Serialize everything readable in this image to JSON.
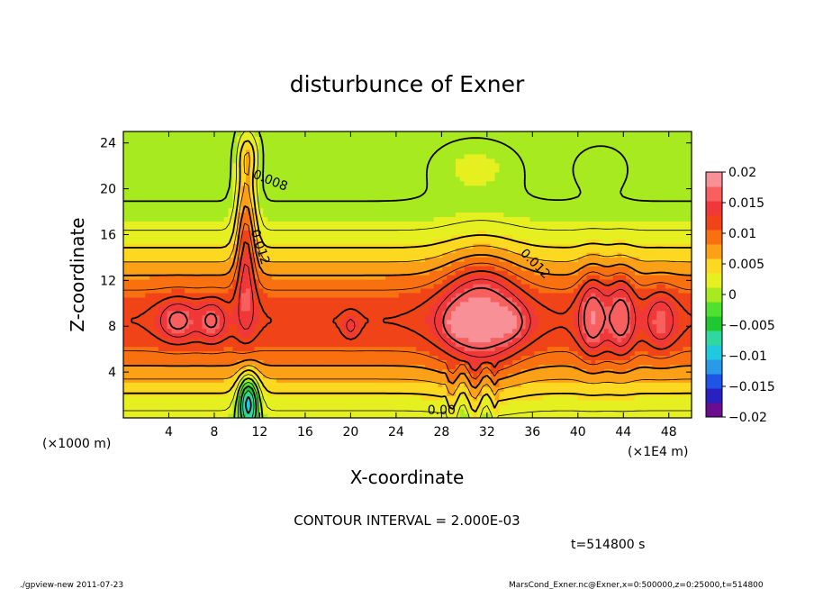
{
  "chart_data": {
    "type": "heatmap",
    "title": "disturbunce of Exner",
    "xlabel": "X-coordinate",
    "ylabel": "Z-coordinate",
    "x_unit_label": "(×1000 m)",
    "x_scale_label": "(×1E4 m)",
    "x_ticks": [
      4,
      8,
      12,
      16,
      20,
      24,
      28,
      32,
      36,
      40,
      44,
      48
    ],
    "y_ticks": [
      4,
      8,
      12,
      16,
      20,
      24
    ],
    "xlim": [
      0,
      50
    ],
    "ylim": [
      0,
      25
    ],
    "contour_interval_text": "CONTOUR INTERVAL = 2.000E-03",
    "time_text": "t=514800 s",
    "contour_labels": [
      {
        "text": "0.008",
        "x": 12.8,
        "z": 20.4,
        "angle": 22
      },
      {
        "text": "0.012",
        "x": 11.7,
        "z": 14.8,
        "angle": 72
      },
      {
        "text": "0.012",
        "x": 36.0,
        "z": 13.2,
        "angle": 45
      },
      {
        "text": "0.00",
        "x": 28.0,
        "z": 0.3,
        "angle": 0
      }
    ],
    "colorbar": {
      "min": -0.02,
      "max": 0.02,
      "ticks": [
        "0.02",
        "0.015",
        "0.01",
        "0.005",
        "0",
        "−0.005",
        "−0.01",
        "−0.015",
        "−0.02"
      ],
      "colors": [
        "#6a0d8f",
        "#2a20c0",
        "#1e55e6",
        "#2a9ae8",
        "#20c8e0",
        "#30d8a0",
        "#20c830",
        "#50e030",
        "#a8ea20",
        "#e6f020",
        "#fcd820",
        "#fca018",
        "#f87010",
        "#f04418",
        "#f03838",
        "#f86060",
        "#f89098"
      ]
    }
  },
  "footer": {
    "left": "./gpview-new   2011-07-23",
    "right": "MarsCond_Exner.nc@Exner,x=0:500000,z=0:25000,t=514800"
  }
}
